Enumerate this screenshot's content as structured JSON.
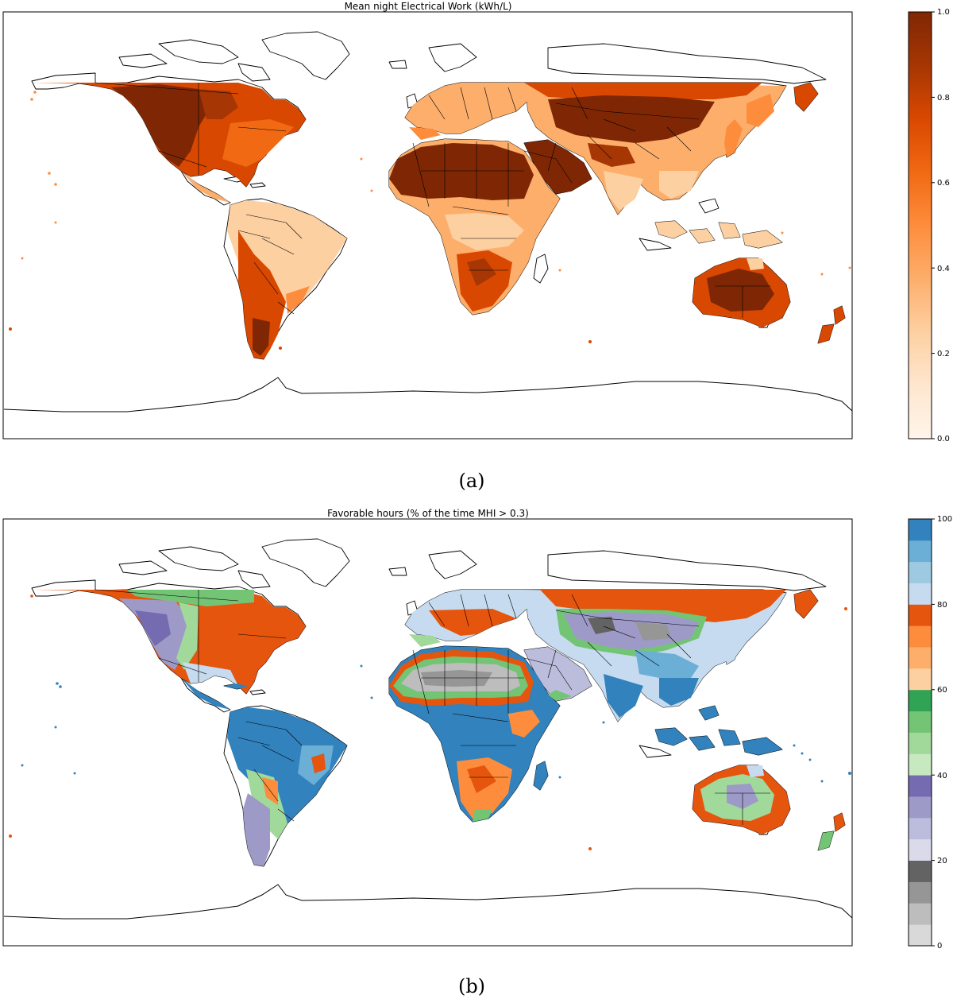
{
  "panel_a": {
    "title": "Mean night Electrical Work (kWh/L)",
    "caption": "(a)",
    "colorbar": {
      "colormap": "Oranges",
      "ticks": [
        "0.0",
        "0.2",
        "0.4",
        "0.6",
        "0.8",
        "1.0"
      ],
      "stops": [
        "#fff5eb",
        "#fee6ce",
        "#fdd0a2",
        "#fdae6b",
        "#fd8d3c",
        "#f16913",
        "#d94801",
        "#a63603",
        "#7f2704"
      ]
    }
  },
  "panel_b": {
    "title": "Favorable hours (% of the time MHI > 0.3)",
    "caption": "(b)",
    "colorbar": {
      "colormap": "tab20c",
      "ticks": [
        "0",
        "20",
        "40",
        "60",
        "80",
        "100"
      ],
      "bands": [
        "#d9d9d9",
        "#bdbdbd",
        "#969696",
        "#636363",
        "#dadaeb",
        "#bcbddc",
        "#9e9ac8",
        "#756bb1",
        "#c7e9c0",
        "#a1d99b",
        "#74c476",
        "#31a354",
        "#fdd0a2",
        "#fdae6b",
        "#fd8d3c",
        "#e6550d",
        "#c6dbef",
        "#9ecae1",
        "#6baed6",
        "#3182bd"
      ]
    }
  }
}
